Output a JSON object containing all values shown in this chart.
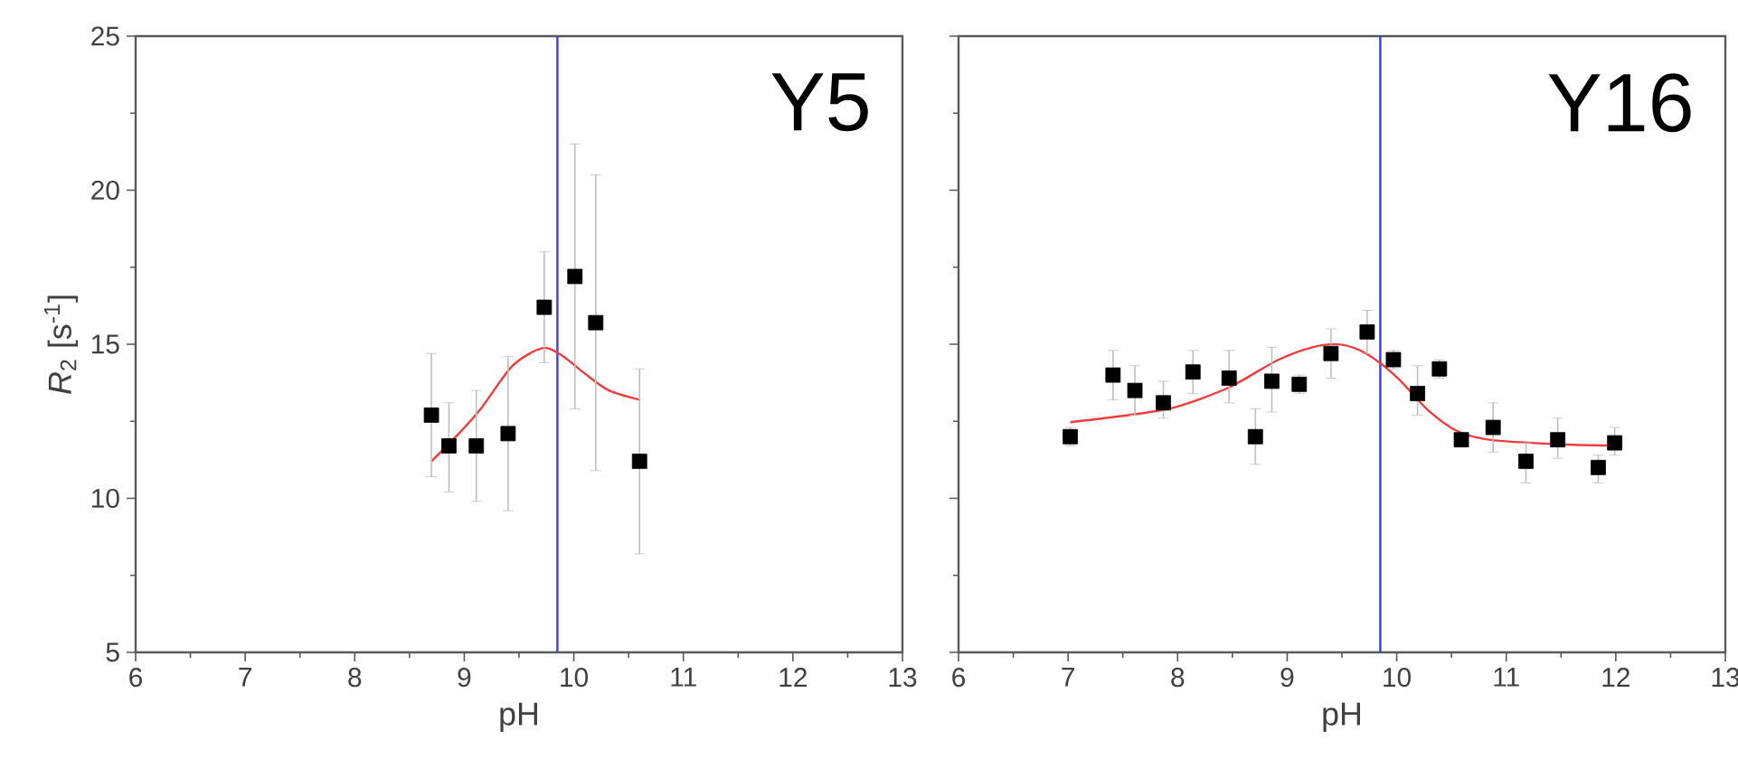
{
  "chart_data": [
    {
      "type": "scatter",
      "xlabel": "pH",
      "ylabel": "*R*$_{2}$ [s$^{-1}$]",
      "annotations": [
        "Y5"
      ],
      "xlim": [
        6,
        13
      ],
      "ylim": [
        5,
        25
      ],
      "xticks": [
        6,
        7,
        8,
        9,
        10,
        11,
        12,
        13
      ],
      "yticks": [
        5,
        10,
        15,
        20,
        25
      ],
      "ref_lines": [
        {
          "axis": "x",
          "value": 9.85,
          "color": "#3a3aff"
        }
      ],
      "series": [
        {
          "marker": "square",
          "color": "#000000",
          "x": [
            8.7,
            8.86,
            9.11,
            9.4,
            9.73,
            10.01,
            10.2,
            10.6
          ],
          "values": [
            12.7,
            11.7,
            11.7,
            12.1,
            16.2,
            17.2,
            15.7,
            11.2
          ],
          "errors": [
            [
              10.7,
              14.7
            ],
            [
              10.2,
              13.1
            ],
            [
              9.9,
              13.5
            ],
            [
              9.6,
              14.6
            ],
            [
              14.4,
              18.0
            ],
            [
              12.9,
              21.5
            ],
            [
              10.9,
              20.5
            ],
            [
              8.2,
              14.2
            ]
          ]
        },
        {
          "type": "line",
          "color": "#f03c3c",
          "x": [
            8.7,
            8.95,
            9.16,
            9.44,
            9.71,
            9.88,
            10.1,
            10.32,
            10.6
          ],
          "values": [
            11.2,
            12.1,
            12.95,
            14.3,
            14.87,
            14.66,
            14.05,
            13.5,
            13.2
          ]
        }
      ]
    },
    {
      "type": "scatter",
      "xlabel": "pH",
      "annotations": [
        "Y16"
      ],
      "xlim": [
        6,
        13
      ],
      "ylim": [
        5,
        25
      ],
      "xticks": [
        6,
        7,
        8,
        9,
        10,
        11,
        12,
        13
      ],
      "yticks": [
        5,
        10,
        15,
        20,
        25
      ],
      "tick_labels": "x",
      "ref_lines": [
        {
          "axis": "x",
          "value": 9.85,
          "color": "#3a3aff"
        }
      ],
      "series": [
        {
          "marker": "square",
          "color": "#000000",
          "x": [
            7.02,
            7.41,
            7.61,
            7.87,
            8.14,
            8.47,
            8.71,
            8.86,
            9.11,
            9.4,
            9.73,
            9.97,
            10.19,
            10.39,
            10.59,
            10.88,
            11.18,
            11.47,
            11.84,
            11.99
          ],
          "values": [
            12.0,
            14.0,
            13.5,
            13.1,
            14.1,
            13.9,
            12.0,
            13.8,
            13.7,
            14.7,
            15.4,
            14.5,
            13.4,
            14.2,
            11.9,
            12.3,
            11.2,
            11.9,
            11.0,
            11.8
          ],
          "errors": [
            [
              11.7,
              12.3
            ],
            [
              13.2,
              14.8
            ],
            [
              12.7,
              14.3
            ],
            [
              12.6,
              13.8
            ],
            [
              13.4,
              14.8
            ],
            [
              13.1,
              14.8
            ],
            [
              11.1,
              12.9
            ],
            [
              12.8,
              14.9
            ],
            [
              13.4,
              14.0
            ],
            [
              13.9,
              15.5
            ],
            [
              14.7,
              16.1
            ],
            [
              14.2,
              14.8
            ],
            [
              12.7,
              14.3
            ],
            [
              13.9,
              14.5
            ],
            [
              11.7,
              12.1
            ],
            [
              11.5,
              13.1
            ],
            [
              10.5,
              11.8
            ],
            [
              11.3,
              12.6
            ],
            [
              10.5,
              11.4
            ],
            [
              11.4,
              12.3
            ]
          ]
        },
        {
          "type": "line",
          "color": "#f03c3c",
          "x": [
            7.02,
            7.59,
            7.98,
            8.47,
            8.91,
            9.24,
            9.49,
            9.73,
            10.01,
            10.28,
            10.56,
            10.89,
            11.65,
            11.99
          ],
          "values": [
            12.47,
            12.72,
            12.96,
            13.6,
            14.48,
            14.91,
            14.99,
            14.68,
            13.9,
            12.88,
            12.17,
            11.88,
            11.73,
            11.72
          ]
        }
      ]
    }
  ]
}
